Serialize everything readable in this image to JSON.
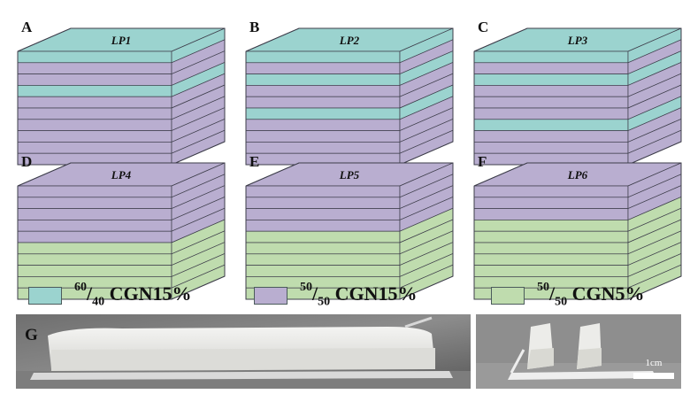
{
  "colors": {
    "teal": "#9bd3cf",
    "purple": "#b9aed0",
    "green": "#bfdcae",
    "edge": "#3d3d4a"
  },
  "panels": [
    {
      "letter": "A",
      "title": "LP1",
      "layers": [
        "teal",
        "purple",
        "purple",
        "teal",
        "purple",
        "purple",
        "purple",
        "purple",
        "purple",
        "purple"
      ]
    },
    {
      "letter": "B",
      "title": "LP2",
      "layers": [
        "teal",
        "purple",
        "teal",
        "purple",
        "purple",
        "teal",
        "purple",
        "purple",
        "purple",
        "purple"
      ]
    },
    {
      "letter": "C",
      "title": "LP3",
      "layers": [
        "teal",
        "purple",
        "teal",
        "purple",
        "purple",
        "purple",
        "teal",
        "purple",
        "purple",
        "purple"
      ]
    },
    {
      "letter": "D",
      "title": "LP4",
      "layers": [
        "purple",
        "purple",
        "purple",
        "purple",
        "purple",
        "green",
        "green",
        "green",
        "green",
        "green"
      ]
    },
    {
      "letter": "E",
      "title": "LP5",
      "layers": [
        "purple",
        "purple",
        "purple",
        "purple",
        "green",
        "green",
        "green",
        "green",
        "green",
        "green"
      ]
    },
    {
      "letter": "F",
      "title": "LP6",
      "layers": [
        "purple",
        "purple",
        "purple",
        "green",
        "green",
        "green",
        "green",
        "green",
        "green",
        "green"
      ]
    }
  ],
  "legend": [
    {
      "color": "teal",
      "ratio_top": "60",
      "ratio_bottom": "40",
      "label": "CGN15%"
    },
    {
      "color": "purple",
      "ratio_top": "50",
      "ratio_bottom": "50",
      "label": "CGN15%"
    },
    {
      "color": "green",
      "ratio_top": "50",
      "ratio_bottom": "50",
      "label": "CGN5%"
    }
  ],
  "photo": {
    "letter": "G",
    "scale_label": "1cm"
  }
}
